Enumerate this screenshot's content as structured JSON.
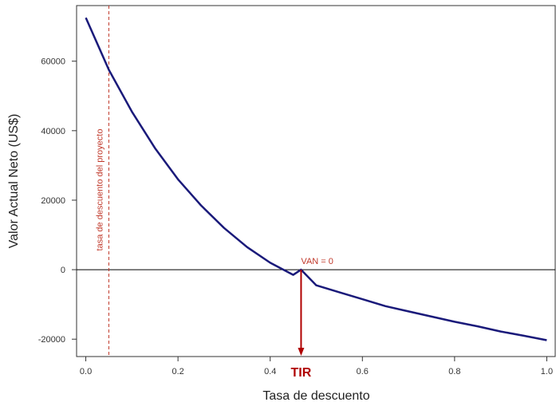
{
  "chart_data": {
    "type": "line",
    "title": "",
    "xlabel": "Tasa de descuento",
    "ylabel": "Valor Actual Neto (US$)",
    "xlim": [
      -0.02,
      1.02
    ],
    "ylim": [
      -25000,
      76000
    ],
    "x_ticks": [
      "0.0",
      "0.2",
      "0.4",
      "0.6",
      "0.8",
      "1.0"
    ],
    "y_ticks": [
      "-20000",
      "0",
      "20000",
      "40000",
      "60000"
    ],
    "x_tick_values": [
      0.0,
      0.2,
      0.4,
      0.6,
      0.8,
      1.0
    ],
    "y_tick_values": [
      -20000,
      0,
      20000,
      40000,
      60000
    ],
    "grid": false,
    "series": [
      {
        "color": "#1a1a7a",
        "x": [
          0.0,
          0.05,
          0.1,
          0.15,
          0.2,
          0.25,
          0.3,
          0.35,
          0.4,
          0.45,
          0.467,
          0.5,
          0.55,
          0.6,
          0.65,
          0.7,
          0.75,
          0.8,
          0.85,
          0.9,
          0.95,
          1.0
        ],
        "values": [
          72500,
          57500,
          45500,
          35000,
          26000,
          18500,
          12000,
          6500,
          2000,
          -1500,
          0,
          -4500,
          -6500,
          -8500,
          -10500,
          -12000,
          -13500,
          -15000,
          -16300,
          -17800,
          -19000,
          -20300
        ]
      }
    ],
    "hline": {
      "y": 0,
      "color": "#000000"
    },
    "vline": {
      "x": 0.05,
      "label": "tasa de descuento del proyecto",
      "color": "#c0392b"
    },
    "annotations": {
      "van_label": "VAN = 0",
      "tir_label": "TIR",
      "tir_x": 0.467,
      "color": "#c0392b",
      "tir_color": "#b00000"
    }
  }
}
